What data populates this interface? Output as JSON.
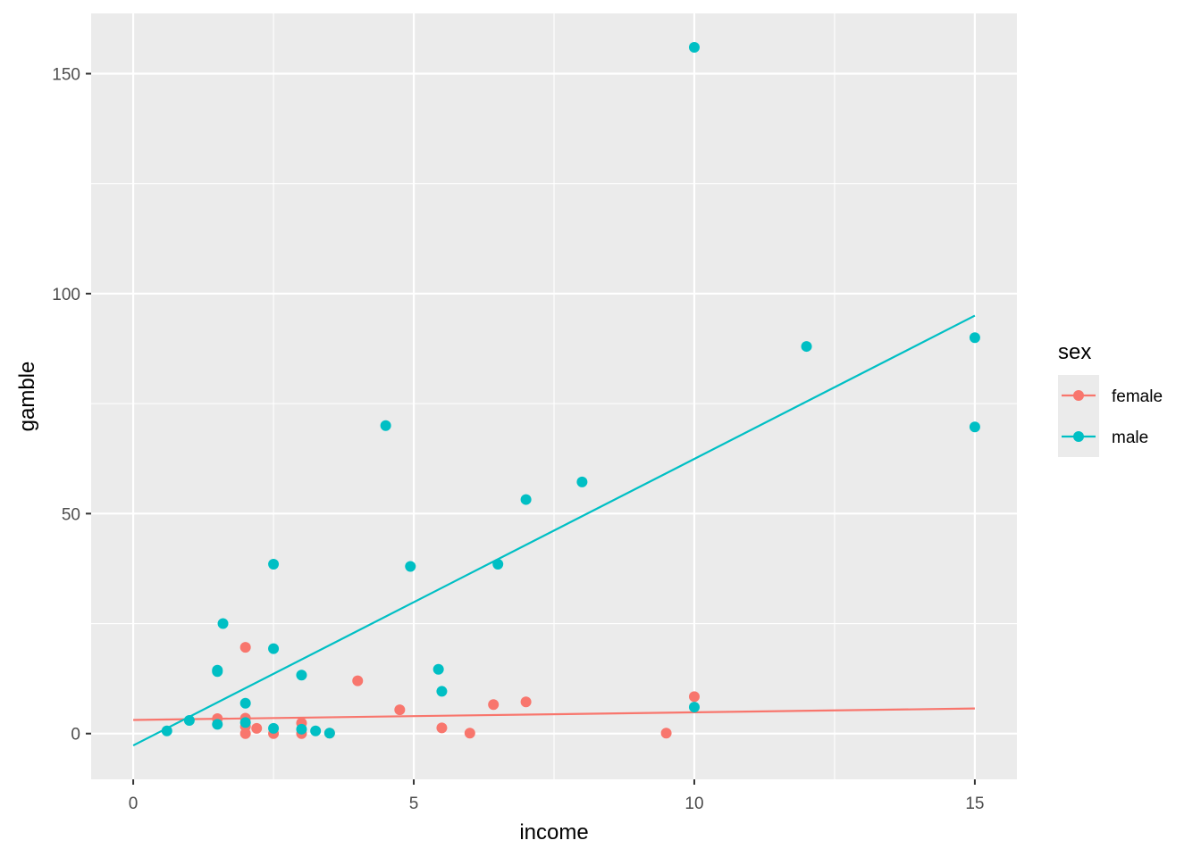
{
  "chart_data": {
    "type": "scatter",
    "xlabel": "income",
    "ylabel": "gamble",
    "xlim": [
      -0.75,
      15.75
    ],
    "ylim": [
      -10.4,
      163.7
    ],
    "x_ticks": [
      0,
      5,
      10,
      15
    ],
    "y_ticks": [
      0,
      50,
      100,
      150
    ],
    "grid": true,
    "legend": {
      "title": "sex",
      "placement": "right",
      "entries": [
        "female",
        "male"
      ]
    },
    "series": [
      {
        "name": "female",
        "color": "#F8766D",
        "points": [
          [
            2,
            19.6
          ],
          [
            1.5,
            3.4
          ],
          [
            2,
            3.5
          ],
          [
            2,
            0
          ],
          [
            2,
            1.6
          ],
          [
            2.2,
            1.2
          ],
          [
            2.5,
            0
          ],
          [
            3,
            2.4
          ],
          [
            3,
            0
          ],
          [
            3.5,
            0.1
          ],
          [
            4,
            12.0
          ],
          [
            4.75,
            5.4
          ],
          [
            5.5,
            1.3
          ],
          [
            6,
            0.1
          ],
          [
            6.42,
            6.6
          ],
          [
            7,
            7.2
          ],
          [
            9.5,
            0.1
          ],
          [
            10,
            8.4
          ]
        ],
        "fit_line": [
          [
            0,
            3.1
          ],
          [
            15,
            5.7
          ]
        ]
      },
      {
        "name": "male",
        "color": "#00BFC4",
        "points": [
          [
            0.6,
            0.6
          ],
          [
            1,
            3.0
          ],
          [
            1.5,
            14.4
          ],
          [
            1.5,
            14.1
          ],
          [
            1.5,
            2.1
          ],
          [
            1.6,
            25.0
          ],
          [
            2,
            6.9
          ],
          [
            2,
            2.5
          ],
          [
            2.5,
            38.5
          ],
          [
            2.5,
            19.3
          ],
          [
            2.5,
            1.2
          ],
          [
            3,
            13.3
          ],
          [
            3,
            1.0
          ],
          [
            3.25,
            0.6
          ],
          [
            3.5,
            0.1
          ],
          [
            4.5,
            70.0
          ],
          [
            4.94,
            38.0
          ],
          [
            5.44,
            14.6
          ],
          [
            5.5,
            9.6
          ],
          [
            6.5,
            38.5
          ],
          [
            7,
            53.2
          ],
          [
            8,
            57.2
          ],
          [
            10,
            156.0
          ],
          [
            10,
            6.0
          ],
          [
            12,
            88.0
          ],
          [
            15,
            90.0
          ],
          [
            15,
            69.7
          ]
        ],
        "fit_line": [
          [
            0,
            -2.7
          ],
          [
            15,
            95.0
          ]
        ]
      }
    ]
  }
}
